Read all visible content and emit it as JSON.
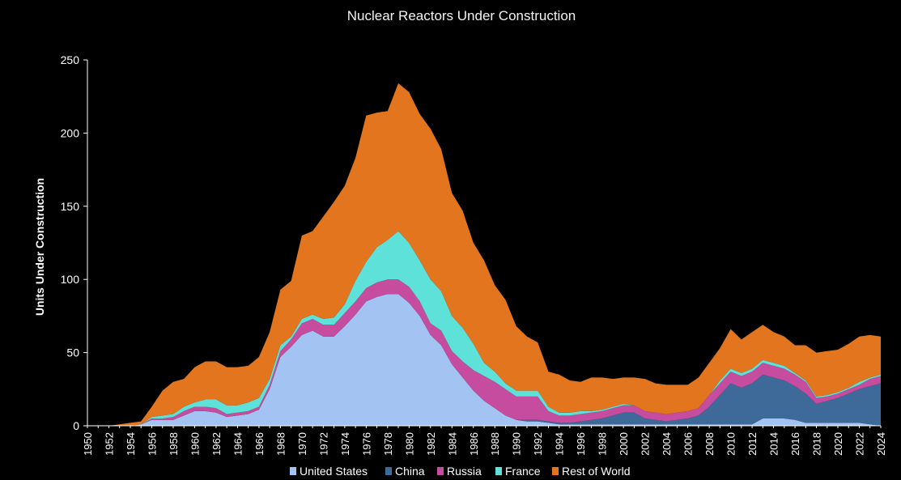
{
  "chart_data": {
    "type": "area",
    "stacked": true,
    "title": "Nuclear Reactors Under Construction",
    "xlabel": "",
    "ylabel": "Units Under Construction",
    "ylim": [
      0,
      250
    ],
    "yticks": [
      0,
      50,
      100,
      150,
      200,
      250
    ],
    "xlim": [
      1950,
      2024
    ],
    "xtick_labels": [
      "1950",
      "1952",
      "1954",
      "1956",
      "1958",
      "1960",
      "1962",
      "1964",
      "1966",
      "1968",
      "1970",
      "1972",
      "1974",
      "1976",
      "1978",
      "1980",
      "1982",
      "1984",
      "1986",
      "1988",
      "1990",
      "1992",
      "1994",
      "1996",
      "1998",
      "2000",
      "2002",
      "2004",
      "2006",
      "2008",
      "2010",
      "2012",
      "2014",
      "2016",
      "2018",
      "2020",
      "2022",
      "2024"
    ],
    "legend_position": "bottom",
    "x": [
      1950,
      1951,
      1952,
      1953,
      1954,
      1955,
      1956,
      1957,
      1958,
      1959,
      1960,
      1961,
      1962,
      1963,
      1964,
      1965,
      1966,
      1967,
      1968,
      1969,
      1970,
      1971,
      1972,
      1973,
      1974,
      1975,
      1976,
      1977,
      1978,
      1979,
      1980,
      1981,
      1982,
      1983,
      1984,
      1985,
      1986,
      1987,
      1988,
      1989,
      1990,
      1991,
      1992,
      1993,
      1994,
      1995,
      1996,
      1997,
      1998,
      1999,
      2000,
      2001,
      2002,
      2003,
      2004,
      2005,
      2006,
      2007,
      2008,
      2009,
      2010,
      2011,
      2012,
      2013,
      2014,
      2015,
      2016,
      2017,
      2018,
      2019,
      2020,
      2021,
      2022,
      2023,
      2024
    ],
    "series": [
      {
        "name": "United States",
        "color": "#a3c4f3",
        "values": [
          0,
          0,
          0,
          0,
          0,
          1,
          4,
          4,
          4,
          7,
          10,
          10,
          9,
          6,
          7,
          8,
          11,
          25,
          47,
          54,
          62,
          65,
          61,
          61,
          68,
          76,
          85,
          88,
          90,
          90,
          84,
          75,
          62,
          55,
          42,
          33,
          24,
          17,
          12,
          7,
          4,
          3,
          3,
          2,
          1,
          1,
          1,
          1,
          1,
          1,
          1,
          1,
          1,
          1,
          1,
          1,
          1,
          1,
          1,
          1,
          1,
          1,
          1,
          5,
          5,
          5,
          4,
          2,
          2,
          2,
          2,
          2,
          2,
          1,
          0
        ]
      },
      {
        "name": "China",
        "color": "#3e6a9a",
        "values": [
          0,
          0,
          0,
          0,
          0,
          0,
          0,
          0,
          0,
          0,
          0,
          0,
          0,
          0,
          0,
          0,
          0,
          0,
          0,
          0,
          0,
          0,
          0,
          0,
          0,
          0,
          0,
          0,
          0,
          0,
          0,
          0,
          0,
          0,
          0,
          0,
          0,
          0,
          0,
          0,
          0,
          1,
          1,
          1,
          1,
          1,
          2,
          3,
          4,
          6,
          8,
          8,
          4,
          3,
          2,
          3,
          4,
          6,
          12,
          20,
          28,
          25,
          28,
          30,
          28,
          26,
          23,
          20,
          13,
          15,
          17,
          20,
          23,
          26,
          29
        ]
      },
      {
        "name": "Russia",
        "color": "#c54c9e",
        "values": [
          0,
          0,
          0,
          0,
          0,
          0,
          1,
          1,
          2,
          3,
          3,
          3,
          3,
          2,
          2,
          2,
          2,
          3,
          4,
          5,
          8,
          8,
          8,
          8,
          9,
          9,
          9,
          10,
          10,
          10,
          11,
          10,
          8,
          10,
          9,
          11,
          14,
          17,
          18,
          18,
          16,
          16,
          16,
          7,
          5,
          5,
          5,
          5,
          5,
          5,
          5,
          5,
          5,
          5,
          5,
          5,
          5,
          5,
          8,
          8,
          8,
          8,
          8,
          8,
          8,
          8,
          8,
          8,
          4,
          3,
          3,
          3,
          3,
          5,
          5
        ]
      },
      {
        "name": "France",
        "color": "#5ee1d8",
        "values": [
          0,
          0,
          0,
          0,
          0,
          0,
          1,
          2,
          2,
          3,
          3,
          5,
          6,
          6,
          5,
          6,
          6,
          4,
          4,
          2,
          3,
          3,
          4,
          5,
          6,
          14,
          18,
          24,
          27,
          33,
          30,
          28,
          30,
          27,
          24,
          23,
          18,
          9,
          7,
          4,
          4,
          4,
          4,
          3,
          2,
          2,
          2,
          1,
          1,
          1,
          1,
          0,
          0,
          0,
          0,
          0,
          0,
          0,
          0,
          2,
          2,
          2,
          2,
          2,
          2,
          2,
          1,
          1,
          1,
          1,
          1,
          1,
          2,
          1,
          1
        ]
      },
      {
        "name": "Rest of World",
        "color": "#e4751f",
        "values": [
          0,
          0,
          0,
          1,
          2,
          2,
          7,
          17,
          22,
          19,
          24,
          26,
          26,
          26,
          26,
          25,
          28,
          32,
          38,
          38,
          57,
          57,
          70,
          79,
          81,
          84,
          100,
          92,
          88,
          101,
          103,
          100,
          103,
          97,
          84,
          80,
          69,
          70,
          59,
          57,
          44,
          37,
          33,
          24,
          26,
          22,
          20,
          23,
          22,
          19,
          18,
          19,
          22,
          20,
          20,
          19,
          18,
          21,
          22,
          22,
          27,
          23,
          25,
          24,
          21,
          20,
          19,
          24,
          30,
          30,
          29,
          30,
          31,
          29,
          26
        ]
      }
    ]
  }
}
